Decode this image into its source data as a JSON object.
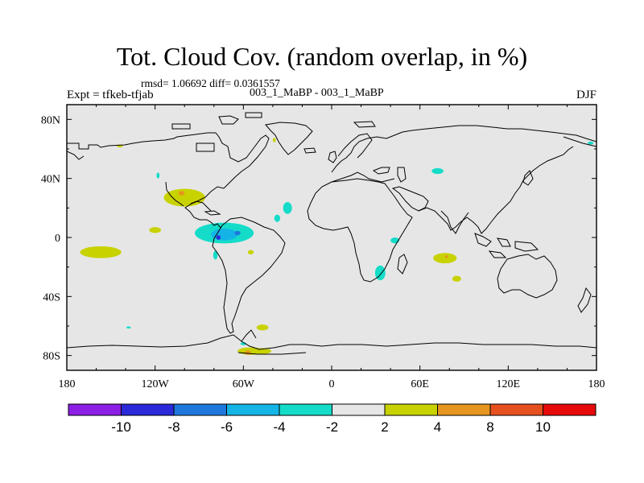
{
  "chart_data": {
    "type": "contour_map",
    "title": "Tot. Cloud Cov. (random overlap, in %)",
    "stats_text": "rmsd= 1.06692  diff= 0.0361557",
    "subtitle": "003_1_MaBP - 003_1_MaBP",
    "left_string": "Expt = tfkeb-tfjab",
    "right_string": "DJF",
    "projection": "cylindrical-equidistant",
    "lon_range": [
      -180,
      180
    ],
    "lat_range": [
      -90,
      90
    ],
    "x_ticks": [
      {
        "value": -180,
        "label": "180"
      },
      {
        "value": -120,
        "label": "120W"
      },
      {
        "value": -60,
        "label": "60W"
      },
      {
        "value": 0,
        "label": "0"
      },
      {
        "value": 60,
        "label": "60E"
      },
      {
        "value": 120,
        "label": "120E"
      },
      {
        "value": 180,
        "label": "180"
      }
    ],
    "y_ticks": [
      {
        "value": 80,
        "label": "80N"
      },
      {
        "value": 40,
        "label": "40N"
      },
      {
        "value": 0,
        "label": "0"
      },
      {
        "value": -40,
        "label": "40S"
      },
      {
        "value": -80,
        "label": "80S"
      }
    ],
    "colorbar": {
      "bins": [
        {
          "lo": null,
          "hi": -10,
          "color": "#8c1ee6"
        },
        {
          "lo": -10,
          "hi": -8,
          "color": "#2a2ad8"
        },
        {
          "lo": -8,
          "hi": -6,
          "color": "#1e78dc"
        },
        {
          "lo": -6,
          "hi": -4,
          "color": "#14b4e6"
        },
        {
          "lo": -4,
          "hi": -2,
          "color": "#14dcc8"
        },
        {
          "lo": -2,
          "hi": 2,
          "color": "#e6e6e6"
        },
        {
          "lo": 2,
          "hi": 4,
          "color": "#c8d200"
        },
        {
          "lo": 4,
          "hi": 8,
          "color": "#e6961e"
        },
        {
          "lo": 8,
          "hi": 10,
          "color": "#e6501e"
        },
        {
          "lo": 10,
          "hi": null,
          "color": "#e60a0a"
        }
      ],
      "labels": [
        "-10",
        "-8",
        "-6",
        "-4",
        "-2",
        "2",
        "4",
        "8",
        "10"
      ]
    },
    "anomaly_regions": [
      {
        "lon": -120,
        "lat": 5,
        "rlon": 4,
        "rlat": 2,
        "level": "2 to 4"
      },
      {
        "lon": -157,
        "lat": -10,
        "rlon": 14,
        "rlat": 4,
        "level": "2 to 4"
      },
      {
        "lon": -100,
        "lat": 27,
        "rlon": 14,
        "rlat": 6,
        "level": "2 to 4"
      },
      {
        "lon": -102,
        "lat": 30,
        "rlon": 2,
        "rlat": 1.5,
        "level": "4 to 8"
      },
      {
        "lon": -73,
        "lat": 3,
        "rlon": 20,
        "rlat": 7,
        "level": "-4 to -2"
      },
      {
        "lon": -73,
        "lat": 2,
        "rlon": 9,
        "rlat": 4,
        "level": "-6 to -4"
      },
      {
        "lon": -64,
        "lat": 3,
        "rlon": 2,
        "rlat": 1.5,
        "level": "-8 to -6"
      },
      {
        "lon": -77,
        "lat": 0,
        "rlon": 1.5,
        "rlat": 1.5,
        "level": "-10 to -8"
      },
      {
        "lon": -30,
        "lat": 20,
        "rlon": 3,
        "rlat": 4,
        "level": "-4 to -2"
      },
      {
        "lon": -37,
        "lat": 13,
        "rlon": 2,
        "rlat": 2.5,
        "level": "-4 to -2"
      },
      {
        "lon": -79,
        "lat": -12,
        "rlon": 1.5,
        "rlat": 3,
        "level": "-4 to -2"
      },
      {
        "lon": -55,
        "lat": -10,
        "rlon": 2,
        "rlat": 1.5,
        "level": "2 to 4"
      },
      {
        "lon": 72,
        "lat": 45,
        "rlon": 4,
        "rlat": 2,
        "level": "-4 to -2"
      },
      {
        "lon": 43,
        "lat": -2,
        "rlon": 3,
        "rlat": 2,
        "level": "-4 to -2"
      },
      {
        "lon": 33,
        "lat": -24,
        "rlon": 3.5,
        "rlat": 5,
        "level": "-4 to -2"
      },
      {
        "lon": 77,
        "lat": -14,
        "rlon": 8,
        "rlat": 3.5,
        "level": "2 to 4"
      },
      {
        "lon": 78,
        "lat": -13,
        "rlon": 1,
        "rlat": 1,
        "level": "4 to 8"
      },
      {
        "lon": 85,
        "lat": -28,
        "rlon": 3,
        "rlat": 2,
        "level": "2 to 4"
      },
      {
        "lon": -144,
        "lat": 62,
        "rlon": 2,
        "rlat": 1,
        "level": "2 to 4"
      },
      {
        "lon": -39,
        "lat": 66,
        "rlon": 1,
        "rlat": 1.5,
        "level": "2 to 4"
      },
      {
        "lon": 176,
        "lat": 64,
        "rlon": 2,
        "rlat": 1,
        "level": "-4 to -2"
      },
      {
        "lon": -118,
        "lat": 42,
        "rlon": 1,
        "rlat": 2,
        "level": "-4 to -2"
      },
      {
        "lon": -47,
        "lat": -61,
        "rlon": 4,
        "rlat": 2,
        "level": "2 to 4"
      },
      {
        "lon": -138,
        "lat": -61,
        "rlon": 1.5,
        "rlat": 0.7,
        "level": "-4 to -2"
      },
      {
        "lon": -60,
        "lat": -72,
        "rlon": 2,
        "rlat": 1,
        "level": "-4 to -2"
      },
      {
        "lon": -55,
        "lat": -77,
        "rlon": 9,
        "rlat": 2.5,
        "level": "2 to 4"
      },
      {
        "lon": -47,
        "lat": -77,
        "rlon": 6,
        "rlat": 2,
        "level": "2 to 4"
      },
      {
        "lon": -57,
        "lat": -78,
        "rlon": 2,
        "rlat": 1.5,
        "level": "4 to 8"
      }
    ]
  }
}
